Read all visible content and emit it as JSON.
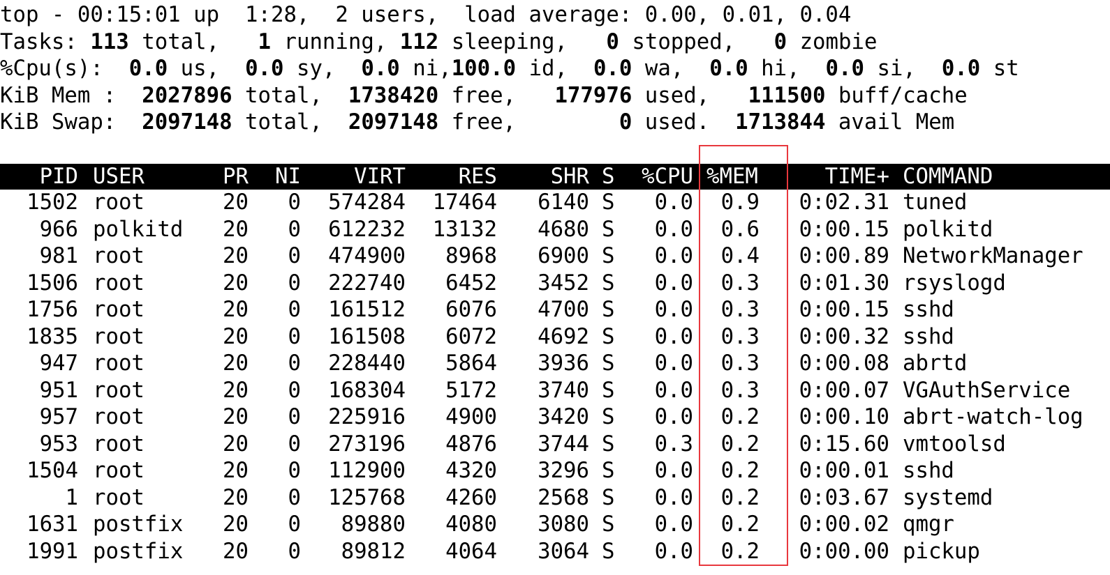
{
  "summary": [
    [
      {
        "t": "top - 00:15:01 up  1:28,  2 users,  load average: 0.00, 0.01, 0.04",
        "b": false
      }
    ],
    [
      {
        "t": "Tasks: ",
        "b": false
      },
      {
        "t": "113",
        "b": true
      },
      {
        "t": " total,   ",
        "b": false
      },
      {
        "t": "1",
        "b": true
      },
      {
        "t": " running, ",
        "b": false
      },
      {
        "t": "112",
        "b": true
      },
      {
        "t": " sleeping,   ",
        "b": false
      },
      {
        "t": "0",
        "b": true
      },
      {
        "t": " stopped,   ",
        "b": false
      },
      {
        "t": "0",
        "b": true
      },
      {
        "t": " zombie",
        "b": false
      }
    ],
    [
      {
        "t": "%Cpu(s):  ",
        "b": false
      },
      {
        "t": "0.0",
        "b": true
      },
      {
        "t": " us,  ",
        "b": false
      },
      {
        "t": "0.0",
        "b": true
      },
      {
        "t": " sy,  ",
        "b": false
      },
      {
        "t": "0.0",
        "b": true
      },
      {
        "t": " ni,",
        "b": false
      },
      {
        "t": "100.0",
        "b": true
      },
      {
        "t": " id,  ",
        "b": false
      },
      {
        "t": "0.0",
        "b": true
      },
      {
        "t": " wa,  ",
        "b": false
      },
      {
        "t": "0.0",
        "b": true
      },
      {
        "t": " hi,  ",
        "b": false
      },
      {
        "t": "0.0",
        "b": true
      },
      {
        "t": " si,  ",
        "b": false
      },
      {
        "t": "0.0",
        "b": true
      },
      {
        "t": " st",
        "b": false
      }
    ],
    [
      {
        "t": "KiB Mem :  ",
        "b": false
      },
      {
        "t": "2027896",
        "b": true
      },
      {
        "t": " total,  ",
        "b": false
      },
      {
        "t": "1738420",
        "b": true
      },
      {
        "t": " free,   ",
        "b": false
      },
      {
        "t": "177976",
        "b": true
      },
      {
        "t": " used,   ",
        "b": false
      },
      {
        "t": "111500",
        "b": true
      },
      {
        "t": " buff/cache",
        "b": false
      }
    ],
    [
      {
        "t": "KiB Swap:  ",
        "b": false
      },
      {
        "t": "2097148",
        "b": true
      },
      {
        "t": " total,  ",
        "b": false
      },
      {
        "t": "2097148",
        "b": true
      },
      {
        "t": " free,        ",
        "b": false
      },
      {
        "t": "0",
        "b": true
      },
      {
        "t": " used.  ",
        "b": false
      },
      {
        "t": "1713844",
        "b": true
      },
      {
        "t": " avail Mem",
        "b": false
      }
    ]
  ],
  "columns": [
    "PID",
    "USER",
    "PR",
    "NI",
    "VIRT",
    "RES",
    "SHR",
    "S",
    "%CPU",
    "%MEM",
    "TIME+",
    "COMMAND"
  ],
  "highlighted_column": "%MEM",
  "highlight_color": "#e8383d",
  "processes": [
    [
      "1502",
      "root",
      "20",
      "0",
      "574284",
      "17464",
      "6140",
      "S",
      "0.0",
      "0.9",
      "0:02.31",
      "tuned"
    ],
    [
      "966",
      "polkitd",
      "20",
      "0",
      "612232",
      "13132",
      "4680",
      "S",
      "0.0",
      "0.6",
      "0:00.15",
      "polkitd"
    ],
    [
      "981",
      "root",
      "20",
      "0",
      "474900",
      "8968",
      "6900",
      "S",
      "0.0",
      "0.4",
      "0:00.89",
      "NetworkManager"
    ],
    [
      "1506",
      "root",
      "20",
      "0",
      "222740",
      "6452",
      "3452",
      "S",
      "0.0",
      "0.3",
      "0:01.30",
      "rsyslogd"
    ],
    [
      "1756",
      "root",
      "20",
      "0",
      "161512",
      "6076",
      "4700",
      "S",
      "0.0",
      "0.3",
      "0:00.15",
      "sshd"
    ],
    [
      "1835",
      "root",
      "20",
      "0",
      "161508",
      "6072",
      "4692",
      "S",
      "0.0",
      "0.3",
      "0:00.32",
      "sshd"
    ],
    [
      "947",
      "root",
      "20",
      "0",
      "228440",
      "5864",
      "3936",
      "S",
      "0.0",
      "0.3",
      "0:00.08",
      "abrtd"
    ],
    [
      "951",
      "root",
      "20",
      "0",
      "168304",
      "5172",
      "3740",
      "S",
      "0.0",
      "0.3",
      "0:00.07",
      "VGAuthService"
    ],
    [
      "957",
      "root",
      "20",
      "0",
      "225916",
      "4900",
      "3420",
      "S",
      "0.0",
      "0.2",
      "0:00.10",
      "abrt-watch-log"
    ],
    [
      "953",
      "root",
      "20",
      "0",
      "273196",
      "4876",
      "3744",
      "S",
      "0.3",
      "0.2",
      "0:15.60",
      "vmtoolsd"
    ],
    [
      "1504",
      "root",
      "20",
      "0",
      "112900",
      "4320",
      "3296",
      "S",
      "0.0",
      "0.2",
      "0:00.01",
      "sshd"
    ],
    [
      "1",
      "root",
      "20",
      "0",
      "125768",
      "4260",
      "2568",
      "S",
      "0.0",
      "0.2",
      "0:03.67",
      "systemd"
    ],
    [
      "1631",
      "postfix",
      "20",
      "0",
      "89880",
      "4080",
      "3080",
      "S",
      "0.0",
      "0.2",
      "0:00.02",
      "qmgr"
    ],
    [
      "1991",
      "postfix",
      "20",
      "0",
      "89812",
      "4064",
      "3064",
      "S",
      "0.0",
      "0.2",
      "0:00.00",
      "pickup"
    ]
  ]
}
